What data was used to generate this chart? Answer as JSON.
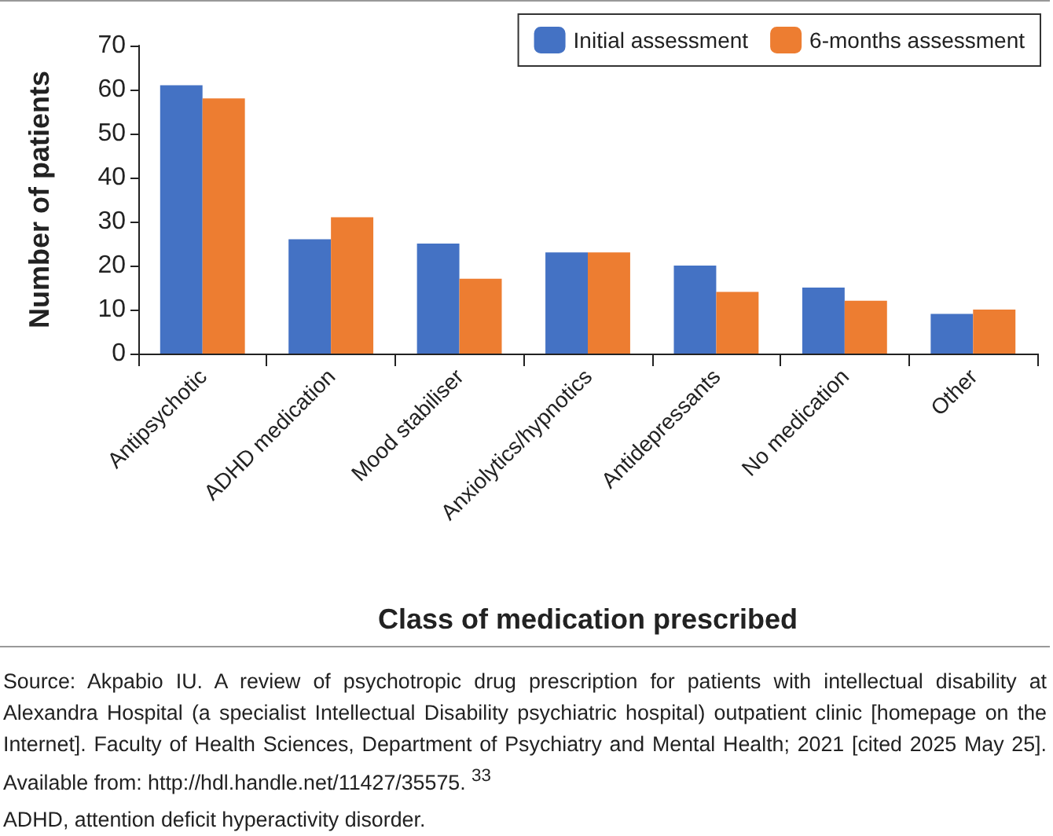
{
  "chart_data": {
    "type": "bar",
    "xlabel": "Class of medication prescribed",
    "ylabel": "Number of patients",
    "categories": [
      "Antipsychotic",
      "ADHD medication",
      "Mood stabiliser",
      "Anxiolytics/hypnotics",
      "Antidepressants",
      "No medication",
      "Other"
    ],
    "series": [
      {
        "name": "Initial assessment",
        "color": "#4472c4",
        "values": [
          61,
          26,
          25,
          23,
          20,
          15,
          9
        ]
      },
      {
        "name": "6-months assessment",
        "color": "#ed7d31",
        "values": [
          58,
          31,
          17,
          23,
          14,
          12,
          10
        ]
      }
    ],
    "ylim": [
      0,
      70
    ],
    "yticks": [
      0,
      10,
      20,
      30,
      40,
      50,
      60,
      70
    ],
    "grid": false,
    "legend": "top right",
    "annotations": [
      "Source: Akpabio IU. A review of psychotropic drug prescription for patients with intellectual disability at Alexandra Hospital (a specialist Intellectual Disability psychiatric hospital) outpatient clinic [homepage on the Internet]. Faculty of Health Sciences, Department of Psychiatry and Mental Health; 2021 [cited 2025 May 25]. Available from: http://hdl.handle.net/11427/35575. $^{33}$",
      "ADHD, attention deficit hyperactivity disorder."
    ]
  }
}
